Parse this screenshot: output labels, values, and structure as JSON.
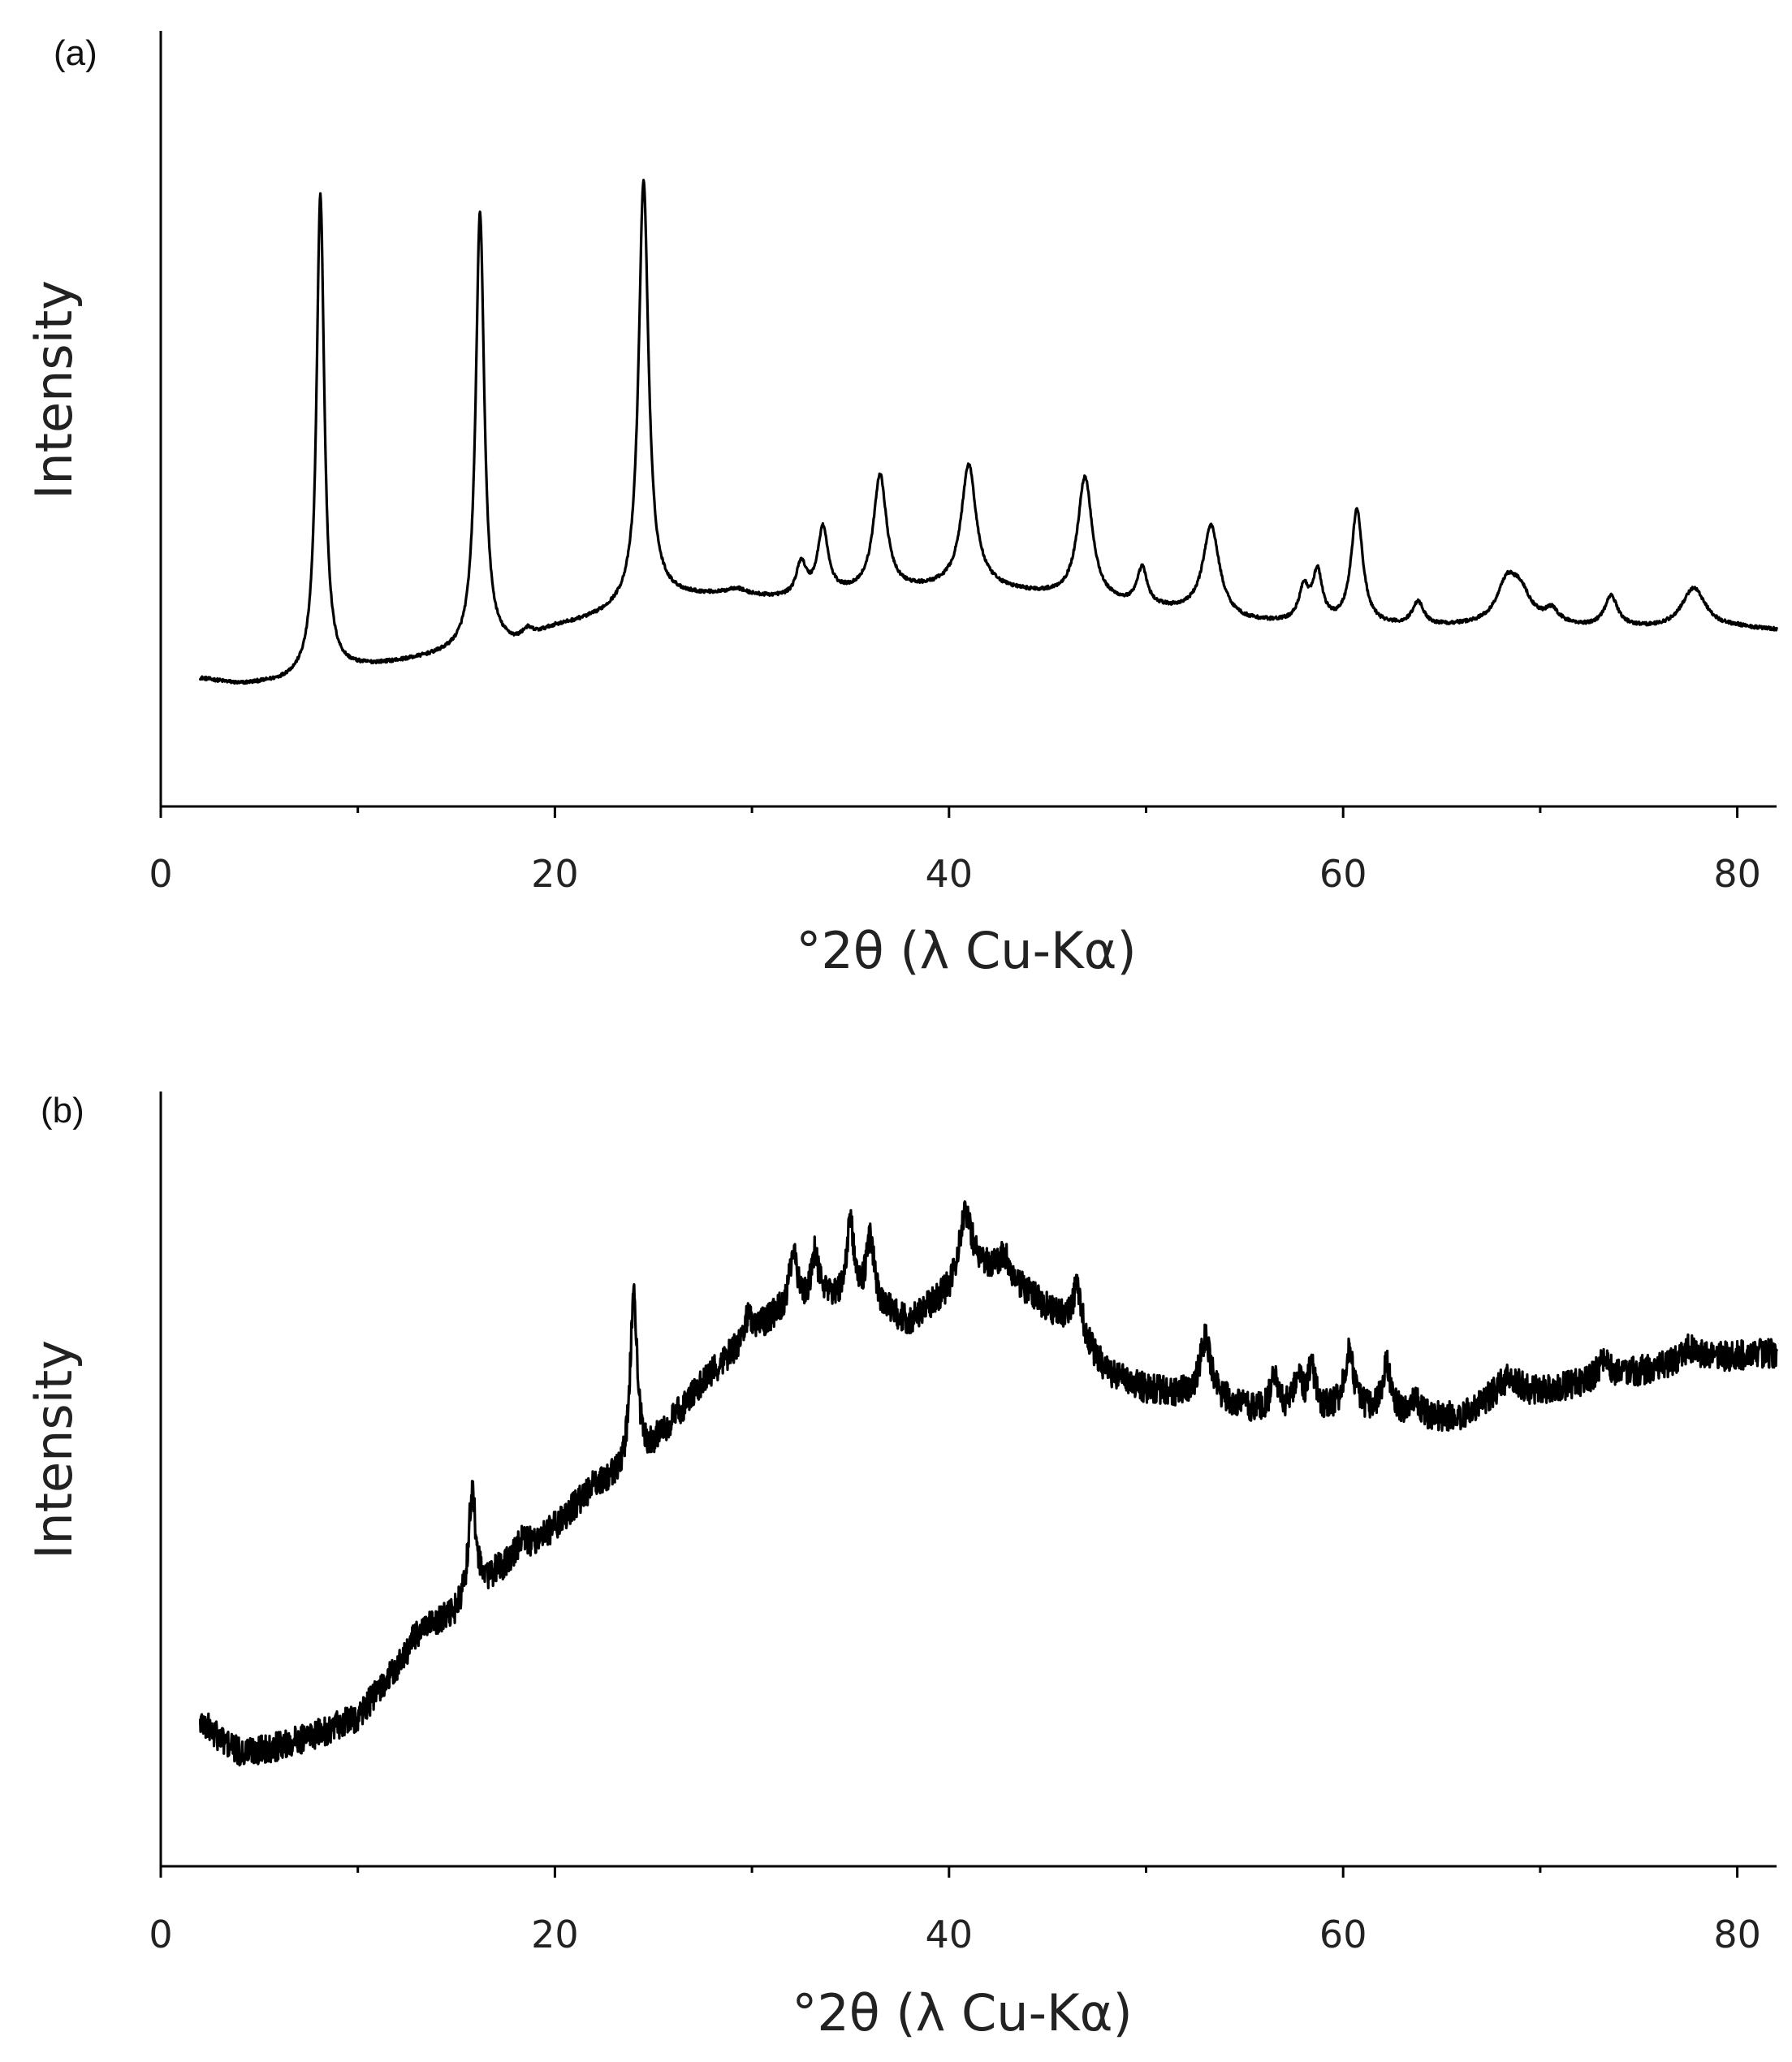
{
  "chart_data": [
    {
      "type": "line",
      "panel_label": "(a)",
      "xlabel": "°2θ (λ Cu-Kα)",
      "ylabel": "Intensity",
      "xlim": [
        0,
        82
      ],
      "ylim": [
        0,
        100
      ],
      "y_ticks_shown": false,
      "x_ticks": [
        0,
        20,
        40,
        60,
        80
      ],
      "x_minor_ticks": [
        10,
        30,
        50,
        70
      ],
      "grid": false,
      "legend": "none",
      "background_points": [
        [
          2,
          11.5
        ],
        [
          4,
          10.6
        ],
        [
          6,
          10.9
        ],
        [
          7.5,
          11.7
        ],
        [
          9,
          12.6
        ],
        [
          12,
          13.8
        ],
        [
          15,
          15.2
        ],
        [
          16.5,
          16.0
        ],
        [
          18,
          16.4
        ],
        [
          20,
          19.0
        ],
        [
          22,
          20.4
        ],
        [
          23.5,
          21.8
        ],
        [
          25.5,
          23.6
        ],
        [
          28,
          23.8
        ],
        [
          30,
          23.6
        ],
        [
          32,
          23.3
        ],
        [
          35,
          24.1
        ],
        [
          38,
          24.6
        ],
        [
          40,
          25.0
        ],
        [
          42,
          24.9
        ],
        [
          45,
          23.8
        ],
        [
          48,
          22.6
        ],
        [
          50,
          22.0
        ],
        [
          52,
          21.3
        ],
        [
          55,
          19.9
        ],
        [
          58,
          19.5
        ],
        [
          61,
          19.2
        ],
        [
          64,
          19.1
        ],
        [
          67,
          19.4
        ],
        [
          70,
          19.6
        ],
        [
          72,
          19.1
        ],
        [
          75,
          18.9
        ],
        [
          78,
          18.5
        ],
        [
          80,
          19.0
        ],
        [
          82,
          18.7
        ]
      ],
      "peaks": [
        {
          "x": 8.1,
          "height": 72.0,
          "width": 0.24
        },
        {
          "x": 16.2,
          "height": 65.5,
          "width": 0.26
        },
        {
          "x": 18.6,
          "height": 1.2,
          "width": 0.3
        },
        {
          "x": 24.5,
          "height": 63.5,
          "width": 0.3
        },
        {
          "x": 29.2,
          "height": 1.0,
          "width": 0.6
        },
        {
          "x": 32.5,
          "height": 5.0,
          "width": 0.3
        },
        {
          "x": 33.6,
          "height": 10.0,
          "width": 0.32
        },
        {
          "x": 36.5,
          "height": 17.5,
          "width": 0.4
        },
        {
          "x": 41.0,
          "height": 18.5,
          "width": 0.45
        },
        {
          "x": 46.9,
          "height": 18.5,
          "width": 0.45
        },
        {
          "x": 49.8,
          "height": 5.6,
          "width": 0.3
        },
        {
          "x": 53.3,
          "height": 13.6,
          "width": 0.5
        },
        {
          "x": 58.0,
          "height": 5.0,
          "width": 0.3
        },
        {
          "x": 58.7,
          "height": 7.4,
          "width": 0.3
        },
        {
          "x": 60.7,
          "height": 17.3,
          "width": 0.35
        },
        {
          "x": 63.8,
          "height": 3.6,
          "width": 0.35
        },
        {
          "x": 68.3,
          "height": 5.8,
          "width": 0.6
        },
        {
          "x": 69.0,
          "height": 4.2,
          "width": 0.6
        },
        {
          "x": 70.6,
          "height": 1.9,
          "width": 0.4
        },
        {
          "x": 73.6,
          "height": 4.6,
          "width": 0.4
        },
        {
          "x": 77.8,
          "height": 6.5,
          "width": 0.75
        }
      ],
      "noise_amplitude": 0.25
    },
    {
      "type": "line",
      "panel_label": "(b)",
      "xlabel": "°2θ (λ Cu-Kα)",
      "ylabel": "Intensity",
      "xlim": [
        0,
        82
      ],
      "ylim": [
        0,
        100
      ],
      "y_ticks_shown": false,
      "x_ticks": [
        0,
        20,
        40,
        60,
        80
      ],
      "x_minor_ticks": [
        10,
        30,
        50,
        70
      ],
      "grid": false,
      "legend": "none",
      "background_points": [
        [
          2,
          14.0
        ],
        [
          3,
          11.5
        ],
        [
          4,
          9.3
        ],
        [
          6,
          10.3
        ],
        [
          8,
          12.1
        ],
        [
          10,
          14.6
        ],
        [
          12,
          22.0
        ],
        [
          13,
          27.0
        ],
        [
          15,
          30.0
        ],
        [
          17,
          36.0
        ],
        [
          20,
          43.0
        ],
        [
          22,
          49.0
        ],
        [
          24,
          51.0
        ],
        [
          26,
          59.0
        ],
        [
          28,
          66.0
        ],
        [
          30,
          72.0
        ],
        [
          32,
          76.0
        ],
        [
          34,
          77.0
        ],
        [
          36,
          76.0
        ],
        [
          38,
          73.5
        ],
        [
          40,
          78.0
        ],
        [
          41,
          83.0
        ],
        [
          43,
          80.0
        ],
        [
          45,
          75.5
        ],
        [
          46.5,
          72.0
        ],
        [
          48,
          66.0
        ],
        [
          50,
          63.5
        ],
        [
          52,
          62.5
        ],
        [
          54,
          61.5
        ],
        [
          56,
          60.0
        ],
        [
          60,
          60.0
        ],
        [
          64,
          59.0
        ],
        [
          66,
          59.5
        ],
        [
          68,
          63.0
        ],
        [
          70,
          63.0
        ],
        [
          74,
          65.5
        ],
        [
          78,
          68.0
        ],
        [
          82,
          69.0
        ]
      ],
      "peaks": [
        {
          "x": 15.8,
          "height": 16.0,
          "width": 0.22
        },
        {
          "x": 18.3,
          "height": 2.0,
          "width": 0.3
        },
        {
          "x": 24.0,
          "height": 27.0,
          "width": 0.22
        },
        {
          "x": 29.8,
          "height": 3.0,
          "width": 0.25
        },
        {
          "x": 32.1,
          "height": 8.0,
          "width": 0.22
        },
        {
          "x": 33.2,
          "height": 7.0,
          "width": 0.22
        },
        {
          "x": 35.0,
          "height": 12.0,
          "width": 0.2
        },
        {
          "x": 36.0,
          "height": 10.0,
          "width": 0.25
        },
        {
          "x": 40.8,
          "height": 7.5,
          "width": 0.35
        },
        {
          "x": 42.8,
          "height": 3.0,
          "width": 0.35
        },
        {
          "x": 46.5,
          "height": 6.5,
          "width": 0.3
        },
        {
          "x": 53.0,
          "height": 9.0,
          "width": 0.35
        },
        {
          "x": 56.5,
          "height": 5.0,
          "width": 0.25
        },
        {
          "x": 57.7,
          "height": 5.5,
          "width": 0.22
        },
        {
          "x": 58.4,
          "height": 6.5,
          "width": 0.22
        },
        {
          "x": 60.3,
          "height": 9.0,
          "width": 0.3
        },
        {
          "x": 62.2,
          "height": 7.5,
          "width": 0.28
        },
        {
          "x": 63.6,
          "height": 3.0,
          "width": 0.3
        },
        {
          "x": 68.5,
          "height": 2.5,
          "width": 0.5
        },
        {
          "x": 73.2,
          "height": 2.5,
          "width": 0.4
        },
        {
          "x": 77.6,
          "height": 2.0,
          "width": 0.5
        }
      ],
      "noise_amplitude": 2.2
    }
  ]
}
